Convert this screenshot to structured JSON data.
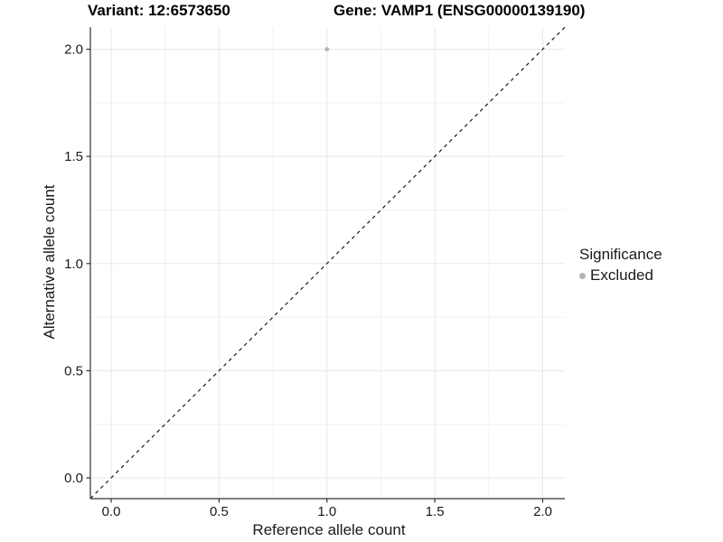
{
  "figure": {
    "background": "#ffffff"
  },
  "chart_data": {
    "type": "scatter",
    "titles": {
      "variant": "Variant: 12:6573650",
      "gene": "Gene: VAMP1 (ENSG00000139190)"
    },
    "xlabel": "Reference allele count",
    "ylabel": "Alternative allele count",
    "xlim": [
      0,
      2
    ],
    "ylim": [
      0,
      2
    ],
    "x_ticks": {
      "values": [
        0,
        0.5,
        1,
        1.5,
        2
      ],
      "labels": [
        "0.0",
        "0.5",
        "1.0",
        "1.5",
        "2.0"
      ]
    },
    "y_ticks": {
      "values": [
        0,
        0.5,
        1,
        1.5,
        2
      ],
      "labels": [
        "0.0",
        "0.5",
        "1.0",
        "1.5",
        "2.0"
      ]
    },
    "grid": "on",
    "series": [
      {
        "name": "Excluded",
        "marker": "circle",
        "color": "#b3b3b3",
        "points": [
          {
            "x": 1,
            "y": 2
          }
        ]
      }
    ],
    "reference_line": {
      "style": "dashed",
      "slope": 1,
      "intercept": 0,
      "color": "#1a1a1a"
    },
    "legend": {
      "title": "Significance",
      "position": "right",
      "items": [
        {
          "label": "Excluded",
          "color": "#b3b3b3",
          "marker": "circle"
        }
      ]
    },
    "colors": {
      "grid_major": "#e7e7e7",
      "grid_minor": "#f2f2f2",
      "axis_line": "#333333",
      "tick_mark": "#333333",
      "tick_label": "#1a1a1a",
      "point": "#b3b3b3"
    }
  }
}
